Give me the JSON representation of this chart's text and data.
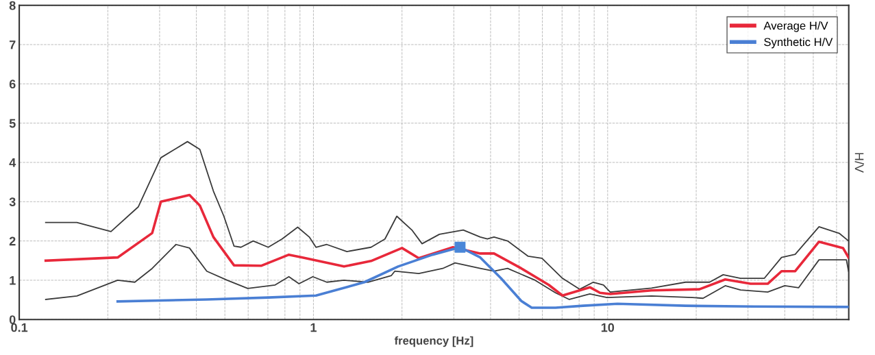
{
  "chart_data": {
    "type": "line",
    "xlabel": "frequency [Hz]",
    "ylabel": "H/V",
    "log": "x",
    "xlim": [
      0.1,
      66
    ],
    "xticks": [
      0.1,
      1,
      10
    ],
    "ylim": [
      0,
      8
    ],
    "yticks": [
      0,
      1,
      2,
      3,
      4,
      5,
      6,
      7,
      8
    ],
    "grid": true,
    "legend": "top right",
    "marker": "none",
    "line_style": "solid",
    "series": [
      {
        "color": "#3a3a3a",
        "x": [
          0.123,
          0.157,
          0.205,
          0.254,
          0.303,
          0.373,
          0.411,
          0.457,
          0.496,
          0.537,
          0.567,
          0.624,
          0.702,
          0.782,
          0.884,
          0.968,
          1.02,
          1.11,
          1.3,
          1.57,
          1.75,
          1.92,
          2.16,
          2.34,
          2.68,
          3.23,
          3.69,
          3.9,
          4.11,
          4.57,
          5.37,
          5.98,
          7.02,
          8.03,
          8.94,
          9.68,
          10.2,
          14.1,
          18.4,
          22.2,
          24.7,
          28.3,
          34.1,
          39.0,
          43.4,
          52.3,
          61.4,
          65.9
        ],
        "values": [
          2.47,
          2.47,
          2.24,
          2.87,
          4.12,
          4.53,
          4.33,
          3.27,
          2.63,
          1.87,
          1.84,
          2.0,
          1.84,
          2.05,
          2.35,
          2.1,
          1.84,
          1.91,
          1.73,
          1.84,
          2.05,
          2.63,
          2.28,
          1.93,
          2.17,
          2.28,
          2.1,
          2.05,
          2.1,
          2.0,
          1.61,
          1.56,
          1.05,
          0.77,
          0.95,
          0.88,
          0.7,
          0.8,
          0.95,
          0.95,
          1.14,
          1.05,
          1.05,
          1.58,
          1.66,
          2.36,
          2.19,
          2.0
        ]
      },
      {
        "color": "#3a3a3a",
        "x": [
          0.123,
          0.157,
          0.216,
          0.247,
          0.283,
          0.341,
          0.379,
          0.434,
          0.509,
          0.598,
          0.741,
          0.825,
          0.893,
          0.995,
          1.11,
          1.27,
          1.53,
          1.84,
          1.89,
          2.28,
          2.75,
          3.03,
          3.69,
          4.11,
          4.57,
          5.67,
          6.65,
          7.41,
          8.7,
          9.95,
          14.1,
          19.4,
          21.1,
          25.1,
          28.3,
          35.0,
          40.0,
          44.6,
          52.3,
          64.8,
          65.9
        ],
        "values": [
          0.51,
          0.6,
          1.0,
          0.95,
          1.3,
          1.91,
          1.82,
          1.23,
          1.0,
          0.79,
          0.88,
          1.09,
          0.91,
          1.09,
          0.95,
          1.0,
          0.95,
          1.12,
          1.23,
          1.17,
          1.3,
          1.44,
          1.3,
          1.23,
          1.3,
          1.0,
          0.68,
          0.51,
          0.65,
          0.56,
          0.6,
          0.56,
          0.54,
          0.86,
          0.75,
          0.7,
          0.86,
          0.81,
          1.52,
          1.52,
          1.23
        ]
      },
      {
        "name": "Average H/V",
        "color": "#e8283a",
        "x": [
          0.123,
          0.216,
          0.283,
          0.303,
          0.379,
          0.411,
          0.457,
          0.537,
          0.666,
          0.825,
          0.918,
          1.27,
          1.57,
          2.0,
          2.28,
          2.98,
          3.69,
          4.11,
          5.09,
          6.31,
          7.02,
          8.7,
          9.42,
          10.2,
          14.1,
          20.5,
          25.1,
          30.6,
          35.0,
          39.0,
          43.4,
          52.3,
          63.1,
          65.9
        ],
        "values": [
          1.5,
          1.58,
          2.2,
          3.0,
          3.17,
          2.9,
          2.1,
          1.38,
          1.37,
          1.65,
          1.58,
          1.35,
          1.49,
          1.82,
          1.56,
          1.84,
          1.68,
          1.68,
          1.3,
          0.88,
          0.61,
          0.82,
          0.68,
          0.65,
          0.74,
          0.77,
          1.02,
          0.91,
          0.91,
          1.23,
          1.23,
          1.98,
          1.82,
          1.58
        ]
      },
      {
        "name": "Synthetic H/V",
        "color": "#4a7fd4",
        "x": [
          0.216,
          0.434,
          0.702,
          1.02,
          1.49,
          1.94,
          2.54,
          3.15,
          3.69,
          4.34,
          5.09,
          5.52,
          6.65,
          8.25,
          10.8,
          18.4,
          31.4,
          65.9
        ],
        "values": [
          0.46,
          0.51,
          0.56,
          0.61,
          0.95,
          1.35,
          1.65,
          1.84,
          1.58,
          1.05,
          0.47,
          0.3,
          0.3,
          0.35,
          0.4,
          0.35,
          0.33,
          0.32
        ]
      },
      {
        "type": "scatter",
        "marker": "square",
        "color": "#4a86d8",
        "x": [
          3.15
        ],
        "values": [
          1.84
        ]
      }
    ]
  }
}
